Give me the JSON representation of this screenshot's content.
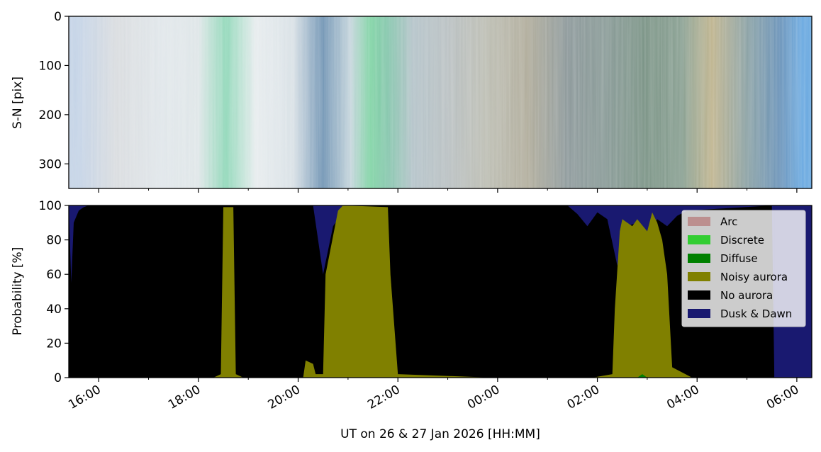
{
  "chart_data": [
    {
      "type": "heatmap",
      "ylabel": "S-N [pix]",
      "ylim": [
        350,
        0
      ],
      "yticks": [
        0,
        100,
        200,
        300
      ],
      "x_range_hours": [
        15.4,
        30.3
      ],
      "bands": [
        {
          "from": 15.4,
          "to": 15.8,
          "color": "#c4d3e6"
        },
        {
          "from": 15.8,
          "to": 16.9,
          "color": "#d9dcdf"
        },
        {
          "from": 16.9,
          "to": 17.6,
          "color": "#e0e6ea"
        },
        {
          "from": 17.6,
          "to": 18.4,
          "color": "#dfe6e8"
        },
        {
          "from": 18.4,
          "to": 18.7,
          "color": "#8fd7b8"
        },
        {
          "from": 18.7,
          "to": 19.6,
          "color": "#e7ecee"
        },
        {
          "from": 19.6,
          "to": 20.2,
          "color": "#d9e1e6"
        },
        {
          "from": 20.2,
          "to": 20.8,
          "color": "#6f93b3"
        },
        {
          "from": 20.8,
          "to": 21.3,
          "color": "#c5d5dc"
        },
        {
          "from": 21.3,
          "to": 21.6,
          "color": "#7fd3a4"
        },
        {
          "from": 21.6,
          "to": 22.0,
          "color": "#86c6ad"
        },
        {
          "from": 22.0,
          "to": 22.6,
          "color": "#b4c3c9"
        },
        {
          "from": 22.6,
          "to": 23.4,
          "color": "#b9c0c2"
        },
        {
          "from": 23.4,
          "to": 24.2,
          "color": "#bcbdb2"
        },
        {
          "from": 24.2,
          "to": 25.0,
          "color": "#b1ad9c"
        },
        {
          "from": 25.0,
          "to": 25.8,
          "color": "#8e9a9c"
        },
        {
          "from": 25.8,
          "to": 26.6,
          "color": "#889a96"
        },
        {
          "from": 26.6,
          "to": 27.4,
          "color": "#7b9486"
        },
        {
          "from": 27.4,
          "to": 28.0,
          "color": "#89a092"
        },
        {
          "from": 28.0,
          "to": 28.6,
          "color": "#c0b590"
        },
        {
          "from": 28.6,
          "to": 29.4,
          "color": "#8aa1a4"
        },
        {
          "from": 29.4,
          "to": 29.9,
          "color": "#6c94b9"
        },
        {
          "from": 29.9,
          "to": 30.3,
          "color": "#6aa9e0"
        }
      ]
    },
    {
      "type": "area",
      "stacked": true,
      "xlabel": "UT on 26 & 27 Jan 2026 [HH:MM]",
      "ylabel": "Probability [%]",
      "ylim": [
        0,
        100
      ],
      "yticks": [
        0,
        20,
        40,
        60,
        80,
        100
      ],
      "xlim": [
        15.4,
        30.3
      ],
      "xticks": [
        {
          "value": 16,
          "label": "16:00"
        },
        {
          "value": 18,
          "label": "18:00"
        },
        {
          "value": 20,
          "label": "20:00"
        },
        {
          "value": 22,
          "label": "22:00"
        },
        {
          "value": 24,
          "label": "00:00"
        },
        {
          "value": 26,
          "label": "02:00"
        },
        {
          "value": 28,
          "label": "04:00"
        },
        {
          "value": 30,
          "label": "06:00"
        }
      ],
      "minor_xticks": [
        17,
        19,
        21,
        23,
        25,
        27,
        29
      ],
      "legend_position": "top-right",
      "series": [
        {
          "name": "Arc",
          "color": "#bc8f8f"
        },
        {
          "name": "Discrete",
          "color": "#32cd32"
        },
        {
          "name": "Diffuse",
          "color": "#008000"
        },
        {
          "name": "Noisy aurora",
          "color": "#808000"
        },
        {
          "name": "No aurora",
          "color": "#000000"
        },
        {
          "name": "Dusk & Dawn",
          "color": "#191970"
        }
      ],
      "noisy_aurora": {
        "x": [
          15.4,
          18.3,
          18.45,
          18.5,
          18.7,
          18.75,
          18.9,
          20.1,
          20.15,
          20.3,
          20.35,
          20.5,
          20.55,
          20.8,
          20.9,
          21.8,
          21.85,
          22.0,
          23.9,
          25.9,
          26.3,
          26.35,
          26.45,
          26.5,
          26.7,
          26.8,
          27.0,
          27.1,
          27.2,
          27.3,
          27.4,
          27.5,
          27.9,
          30.3
        ],
        "y": [
          0,
          0,
          2,
          99,
          99,
          2,
          0,
          0,
          10,
          8,
          2,
          2,
          60,
          97,
          100,
          99,
          60,
          2,
          0,
          0,
          2,
          40,
          85,
          92,
          88,
          92,
          85,
          96,
          90,
          80,
          60,
          6,
          0,
          0
        ]
      },
      "dusk_dawn": {
        "x": [
          15.4,
          15.45,
          15.5,
          15.6,
          15.7,
          15.8,
          20.3,
          20.5,
          20.7,
          20.9,
          21.0,
          25.4,
          25.6,
          25.8,
          26.0,
          26.2,
          26.4,
          26.6,
          26.8,
          27.0,
          27.2,
          27.4,
          27.6,
          27.8,
          29.5,
          29.55,
          30.3
        ],
        "y": [
          100,
          55,
          90,
          97,
          99,
          100,
          100,
          60,
          88,
          96,
          100,
          100,
          95,
          88,
          96,
          92,
          65,
          88,
          90,
          85,
          92,
          88,
          94,
          97,
          100,
          0,
          0
        ]
      }
    }
  ]
}
